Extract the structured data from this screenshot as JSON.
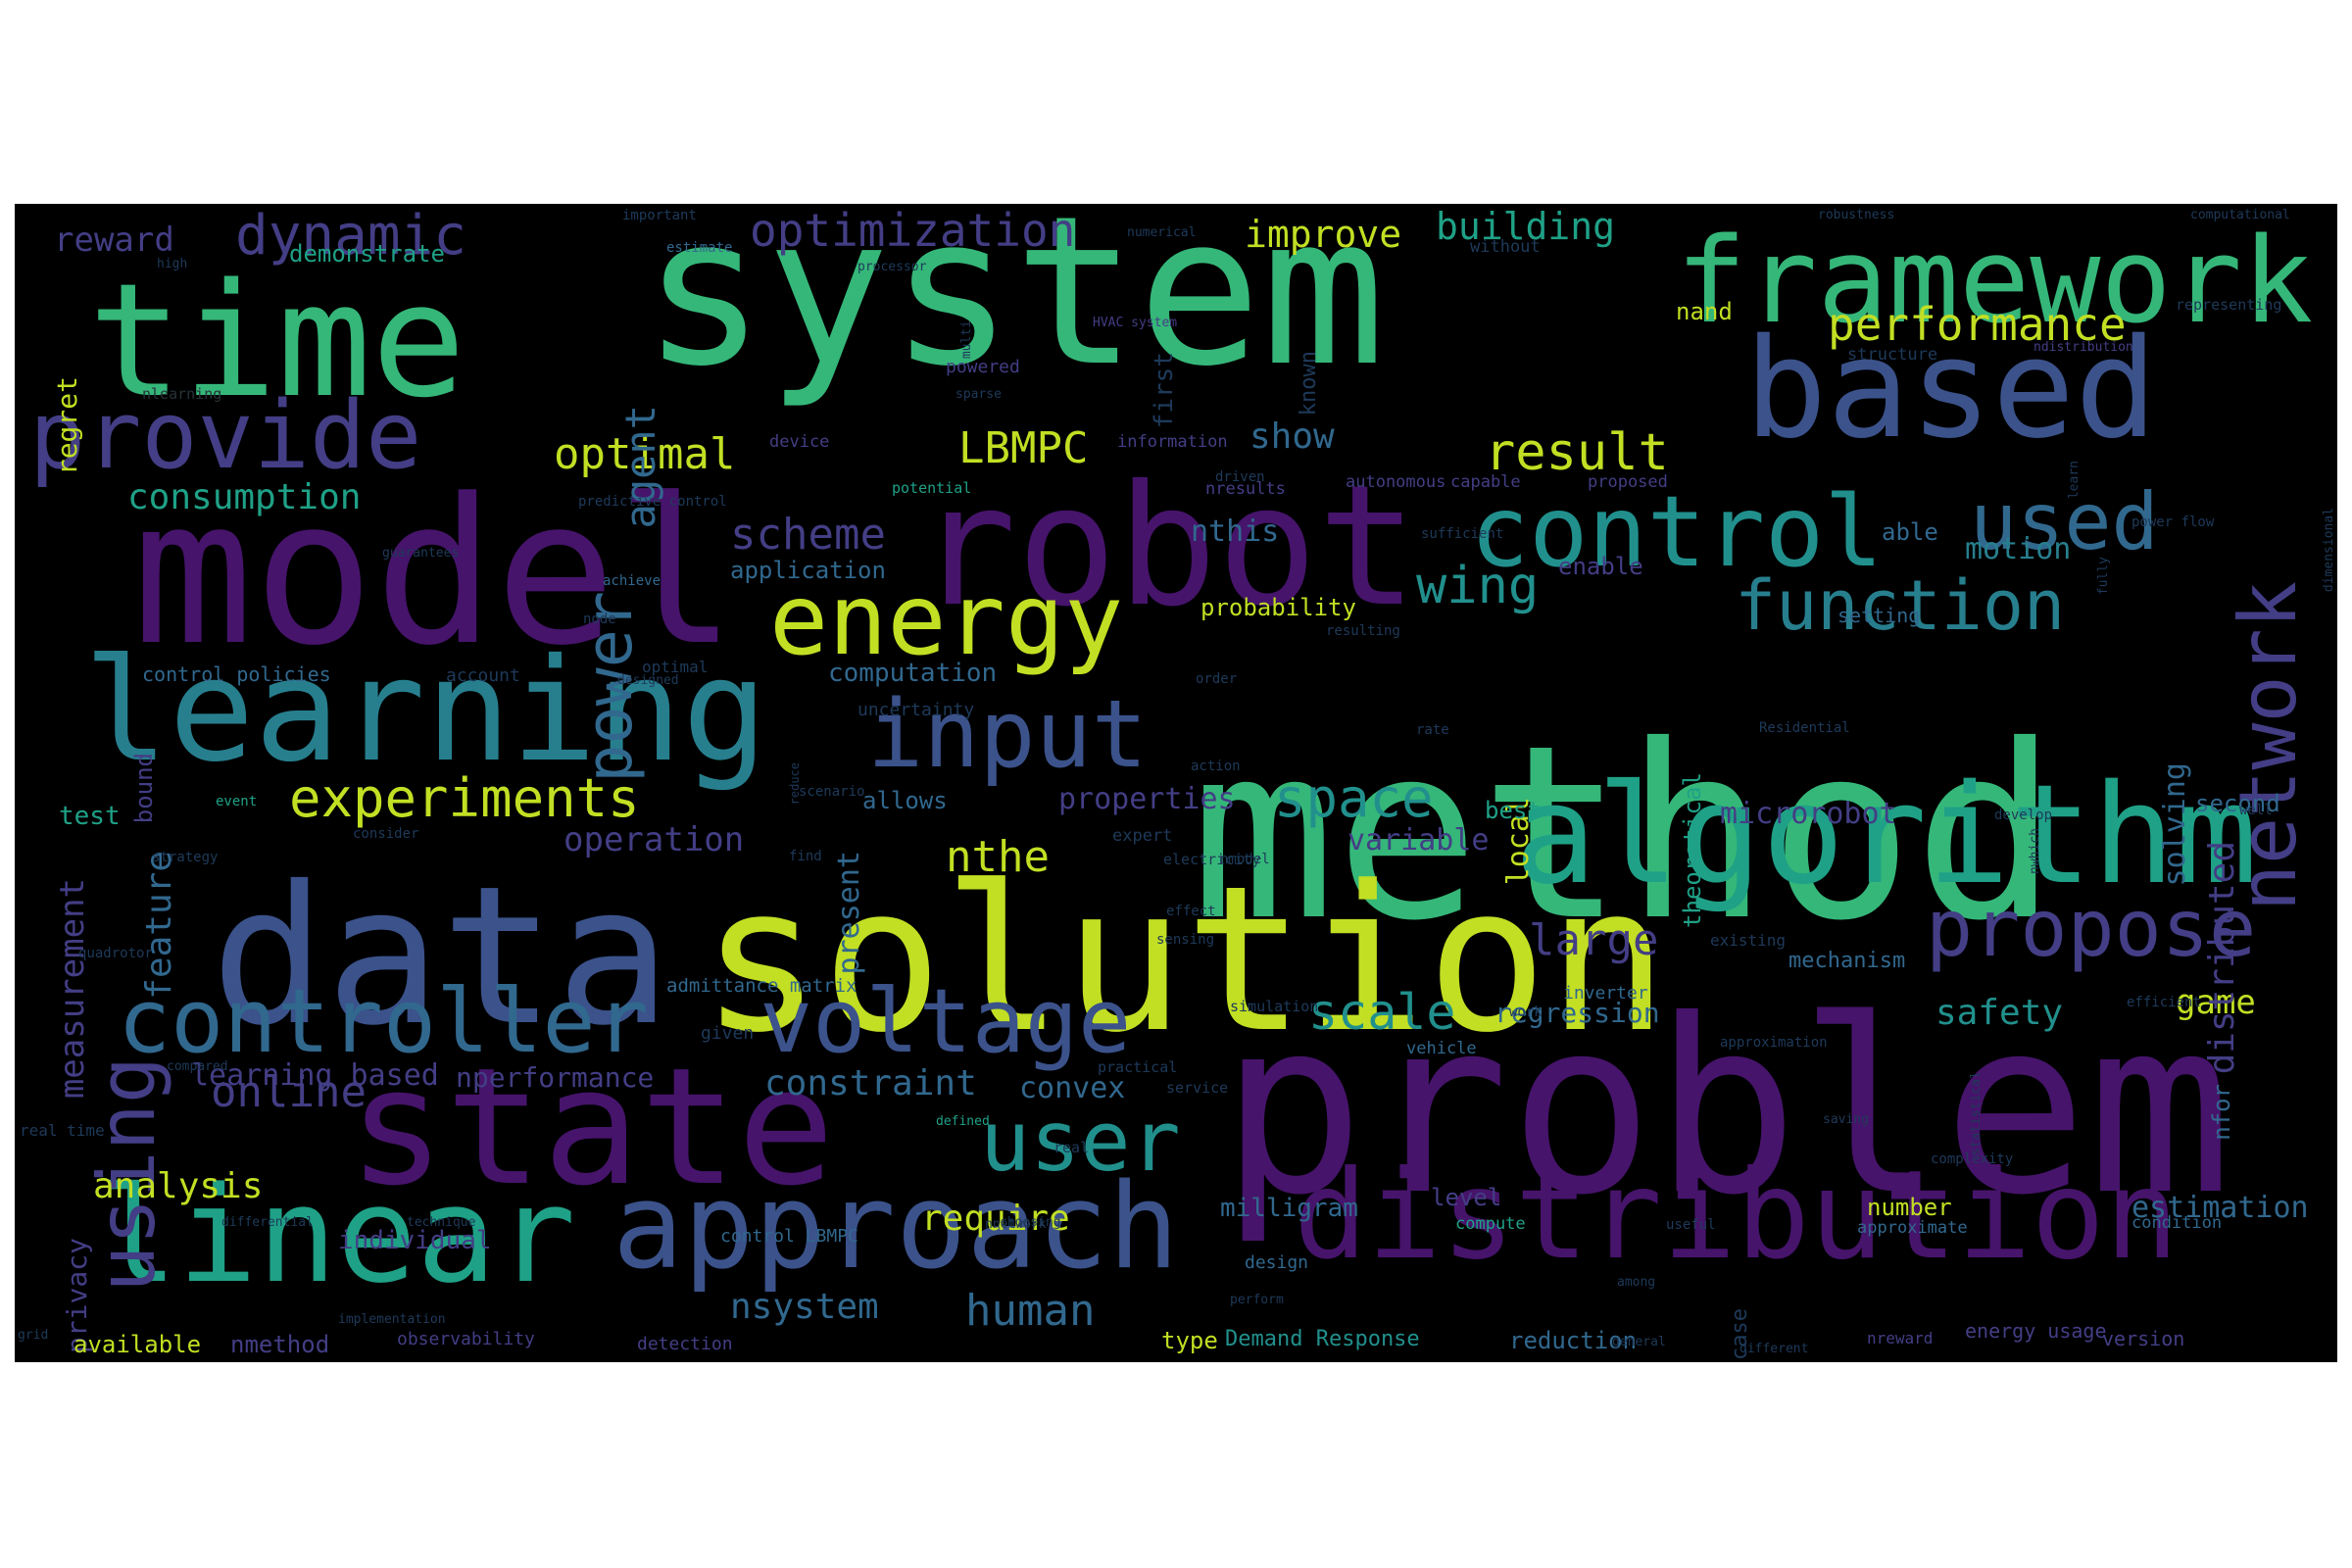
{
  "palette": {
    "purple": "#46146b",
    "indigo": "#433e85",
    "blue": "#3b528b",
    "steel": "#31688e",
    "teal": "#277f8e",
    "aqua": "#21908d",
    "sea": "#1fa187",
    "green": "#35b779",
    "leaf": "#54c568",
    "lime": "#a5db36",
    "yellow": "#c2df23",
    "dim": "#1e3a5a",
    "faint": "#263238"
  },
  "words": [
    {
      "text": "system",
      "color": "green"
    },
    {
      "text": "method",
      "color": "green"
    },
    {
      "text": "problem",
      "color": "purple"
    },
    {
      "text": "solution",
      "color": "yellow"
    },
    {
      "text": "model",
      "color": "purple"
    },
    {
      "text": "data",
      "color": "blue"
    },
    {
      "text": "robot",
      "color": "purple"
    },
    {
      "text": "time",
      "color": "green"
    },
    {
      "text": "state",
      "color": "purple"
    },
    {
      "text": "algorithm",
      "color": "sea"
    },
    {
      "text": "framework",
      "color": "green"
    },
    {
      "text": "based",
      "color": "blue"
    },
    {
      "text": "learning",
      "color": "teal"
    },
    {
      "text": "linear",
      "color": "sea"
    },
    {
      "text": "distribution",
      "color": "purple"
    },
    {
      "text": "approach",
      "color": "blue"
    },
    {
      "text": "energy",
      "color": "yellow"
    },
    {
      "text": "control",
      "color": "aqua"
    },
    {
      "text": "controller",
      "color": "steel"
    },
    {
      "text": "voltage",
      "color": "blue"
    },
    {
      "text": "provide",
      "color": "indigo"
    },
    {
      "text": "input",
      "color": "blue"
    },
    {
      "text": "propose",
      "color": "indigo"
    },
    {
      "text": "used",
      "color": "steel"
    },
    {
      "text": "function",
      "color": "teal"
    },
    {
      "text": "network",
      "color": "indigo"
    },
    {
      "text": "user",
      "color": "aqua"
    },
    {
      "text": "using",
      "color": "indigo"
    },
    {
      "text": "power",
      "color": "steel"
    },
    {
      "text": "dynamic",
      "color": "indigo"
    },
    {
      "text": "optimization",
      "color": "indigo"
    },
    {
      "text": "experiments",
      "color": "yellow"
    },
    {
      "text": "space",
      "color": "aqua"
    },
    {
      "text": "scheme",
      "color": "indigo"
    },
    {
      "text": "wing",
      "color": "aqua"
    },
    {
      "text": "result",
      "color": "yellow"
    },
    {
      "text": "performance",
      "color": "yellow"
    },
    {
      "text": "optimal",
      "color": "yellow"
    },
    {
      "text": "LBMPC",
      "color": "yellow"
    },
    {
      "text": "building",
      "color": "sea"
    },
    {
      "text": "improve",
      "color": "yellow"
    },
    {
      "text": "agent",
      "color": "steel"
    },
    {
      "text": "consumption",
      "color": "sea"
    },
    {
      "text": "measurement",
      "color": "indigo"
    },
    {
      "text": "reward",
      "color": "indigo"
    },
    {
      "text": "demonstrate",
      "color": "sea"
    },
    {
      "text": "show",
      "color": "steel"
    },
    {
      "text": "nthis",
      "color": "steel"
    },
    {
      "text": "motion",
      "color": "teal"
    },
    {
      "text": "nthe",
      "color": "yellow"
    },
    {
      "text": "scale",
      "color": "aqua"
    },
    {
      "text": "large",
      "color": "indigo"
    },
    {
      "text": "online",
      "color": "indigo"
    },
    {
      "text": "analysis",
      "color": "yellow"
    },
    {
      "text": "human",
      "color": "steel"
    },
    {
      "text": "nsystem",
      "color": "steel"
    },
    {
      "text": "require",
      "color": "yellow"
    },
    {
      "text": "constraint",
      "color": "steel"
    },
    {
      "text": "convex",
      "color": "steel"
    },
    {
      "text": "safety",
      "color": "aqua"
    },
    {
      "text": "game",
      "color": "yellow"
    },
    {
      "text": "feature",
      "color": "steel"
    },
    {
      "text": "present",
      "color": "steel"
    },
    {
      "text": "distributed",
      "color": "indigo"
    },
    {
      "text": "solving",
      "color": "steel"
    },
    {
      "text": "microrobot",
      "color": "indigo"
    },
    {
      "text": "estimation",
      "color": "steel"
    },
    {
      "text": "regret",
      "color": "yellow"
    },
    {
      "text": "privacy",
      "color": "indigo"
    },
    {
      "text": "local",
      "color": "yellow"
    },
    {
      "text": "first",
      "color": "dim"
    },
    {
      "text": "known",
      "color": "dim"
    },
    {
      "text": "theoretical",
      "color": "sea"
    },
    {
      "text": "nand",
      "color": "yellow"
    },
    {
      "text": "nfor",
      "color": "steel"
    },
    {
      "text": "operation",
      "color": "indigo"
    },
    {
      "text": "variable",
      "color": "indigo"
    },
    {
      "text": "regression",
      "color": "steel"
    },
    {
      "text": "mechanism",
      "color": "steel"
    },
    {
      "text": "computation",
      "color": "steel"
    },
    {
      "text": "application",
      "color": "steel"
    },
    {
      "text": "probability",
      "color": "yellow"
    },
    {
      "text": "properties",
      "color": "indigo"
    },
    {
      "text": "allows",
      "color": "steel"
    },
    {
      "text": "enable",
      "color": "indigo"
    },
    {
      "text": "able",
      "color": "steel"
    },
    {
      "text": "test",
      "color": "sea"
    },
    {
      "text": "bound",
      "color": "indigo"
    },
    {
      "text": "best",
      "color": "sea"
    },
    {
      "text": "second",
      "color": "steel"
    },
    {
      "text": "learning based",
      "color": "indigo"
    },
    {
      "text": "nperformance",
      "color": "indigo"
    },
    {
      "text": "individual",
      "color": "indigo"
    },
    {
      "text": "milligram",
      "color": "steel"
    },
    {
      "text": "number",
      "color": "yellow"
    },
    {
      "text": "level",
      "color": "indigo"
    },
    {
      "text": "available",
      "color": "yellow"
    },
    {
      "text": "nmethod",
      "color": "indigo"
    },
    {
      "text": "type",
      "color": "yellow"
    },
    {
      "text": "Demand Response",
      "color": "aqua"
    },
    {
      "text": "reduction",
      "color": "steel"
    },
    {
      "text": "case",
      "color": "dim"
    },
    {
      "text": "energy usage",
      "color": "indigo"
    },
    {
      "text": "nreward",
      "color": "indigo"
    },
    {
      "text": "version",
      "color": "indigo"
    },
    {
      "text": "design",
      "color": "steel"
    },
    {
      "text": "detection",
      "color": "indigo"
    },
    {
      "text": "observability",
      "color": "indigo"
    },
    {
      "text": "control policies",
      "color": "steel"
    },
    {
      "text": "control LBMPC",
      "color": "steel"
    },
    {
      "text": "account",
      "color": "dim"
    },
    {
      "text": "optimal",
      "color": "dim"
    },
    {
      "text": "uncertainty",
      "color": "dim"
    },
    {
      "text": "setting",
      "color": "steel"
    },
    {
      "text": "nresults",
      "color": "indigo"
    },
    {
      "text": "driven",
      "color": "dim"
    },
    {
      "text": "capable",
      "color": "indigo"
    },
    {
      "text": "proposed",
      "color": "indigo"
    },
    {
      "text": "autonomous",
      "color": "indigo"
    },
    {
      "text": "information",
      "color": "indigo"
    },
    {
      "text": "device",
      "color": "indigo"
    },
    {
      "text": "powered",
      "color": "indigo"
    },
    {
      "text": "potential",
      "color": "sea"
    },
    {
      "text": "predictive control",
      "color": "dim"
    },
    {
      "text": "achieve",
      "color": "steel"
    },
    {
      "text": "node",
      "color": "dim"
    },
    {
      "text": "guarantees",
      "color": "dim"
    },
    {
      "text": "nlearning",
      "color": "faint"
    },
    {
      "text": "important",
      "color": "dim"
    },
    {
      "text": "estimate",
      "color": "steel"
    },
    {
      "text": "numerical",
      "color": "dim"
    },
    {
      "text": "processor",
      "color": "dim"
    },
    {
      "text": "without",
      "color": "dim"
    },
    {
      "text": "robustness",
      "color": "dim"
    },
    {
      "text": "computational",
      "color": "dim"
    },
    {
      "text": "structure",
      "color": "dim"
    },
    {
      "text": "ndistribution",
      "color": "indigo"
    },
    {
      "text": "representing",
      "color": "dim"
    },
    {
      "text": "HVAC system",
      "color": "indigo"
    },
    {
      "text": "multi",
      "color": "dim"
    },
    {
      "text": "sparse",
      "color": "dim"
    },
    {
      "text": "high",
      "color": "dim"
    },
    {
      "text": "learn",
      "color": "dim"
    },
    {
      "text": "power flow",
      "color": "dim"
    },
    {
      "text": "fully",
      "color": "dim"
    },
    {
      "text": "dimensional",
      "color": "dim"
    },
    {
      "text": "sufficient",
      "color": "dim"
    },
    {
      "text": "resulting",
      "color": "dim"
    },
    {
      "text": "order",
      "color": "dim"
    },
    {
      "text": "designed",
      "color": "dim"
    },
    {
      "text": "rate",
      "color": "dim"
    },
    {
      "text": "Residential",
      "color": "dim"
    },
    {
      "text": "action",
      "color": "dim"
    },
    {
      "text": "reduce",
      "color": "dim"
    },
    {
      "text": "scenario",
      "color": "dim"
    },
    {
      "text": "event",
      "color": "sea"
    },
    {
      "text": "consider",
      "color": "dim"
    },
    {
      "text": "strategy",
      "color": "dim"
    },
    {
      "text": "nmodel",
      "color": "dim"
    },
    {
      "text": "find",
      "color": "dim"
    },
    {
      "text": "expert",
      "color": "dim"
    },
    {
      "text": "electricity",
      "color": "dim"
    },
    {
      "text": "nwhich",
      "color": "dim"
    },
    {
      "text": "develop",
      "color": "dim"
    },
    {
      "text": "well",
      "color": "dim"
    },
    {
      "text": "sensing",
      "color": "dim"
    },
    {
      "text": "existing",
      "color": "dim"
    },
    {
      "text": "effect",
      "color": "dim"
    },
    {
      "text": "quadrotor",
      "color": "dim"
    },
    {
      "text": "admittance matrix",
      "color": "steel"
    },
    {
      "text": "inverter",
      "color": "steel"
    },
    {
      "text": "simulation",
      "color": "dim"
    },
    {
      "text": "efficient",
      "color": "dim"
    },
    {
      "text": "work",
      "color": "dim"
    },
    {
      "text": "given",
      "color": "dim"
    },
    {
      "text": "vehicle",
      "color": "steel"
    },
    {
      "text": "approximation",
      "color": "dim"
    },
    {
      "text": "practical",
      "color": "dim"
    },
    {
      "text": "compared",
      "color": "dim"
    },
    {
      "text": "service",
      "color": "dim"
    },
    {
      "text": "defined",
      "color": "sea"
    },
    {
      "text": "saving",
      "color": "dim"
    },
    {
      "text": "statistical",
      "color": "dim"
    },
    {
      "text": "real time",
      "color": "dim"
    },
    {
      "text": "real",
      "color": "dim"
    },
    {
      "text": "complexity",
      "color": "dim"
    },
    {
      "text": "differential",
      "color": "dim"
    },
    {
      "text": "technique",
      "color": "dim"
    },
    {
      "text": "nnetwork",
      "color": "dim"
    },
    {
      "text": "choosing",
      "color": "dim"
    },
    {
      "text": "compute",
      "color": "sea"
    },
    {
      "text": "useful",
      "color": "dim"
    },
    {
      "text": "approximate",
      "color": "steel"
    },
    {
      "text": "condition",
      "color": "steel"
    },
    {
      "text": "among",
      "color": "dim"
    },
    {
      "text": "perform",
      "color": "dim"
    },
    {
      "text": "implementation",
      "color": "dim"
    },
    {
      "text": "grid",
      "color": "dim"
    },
    {
      "text": "general",
      "color": "dim"
    },
    {
      "text": "different",
      "color": "dim"
    }
  ]
}
